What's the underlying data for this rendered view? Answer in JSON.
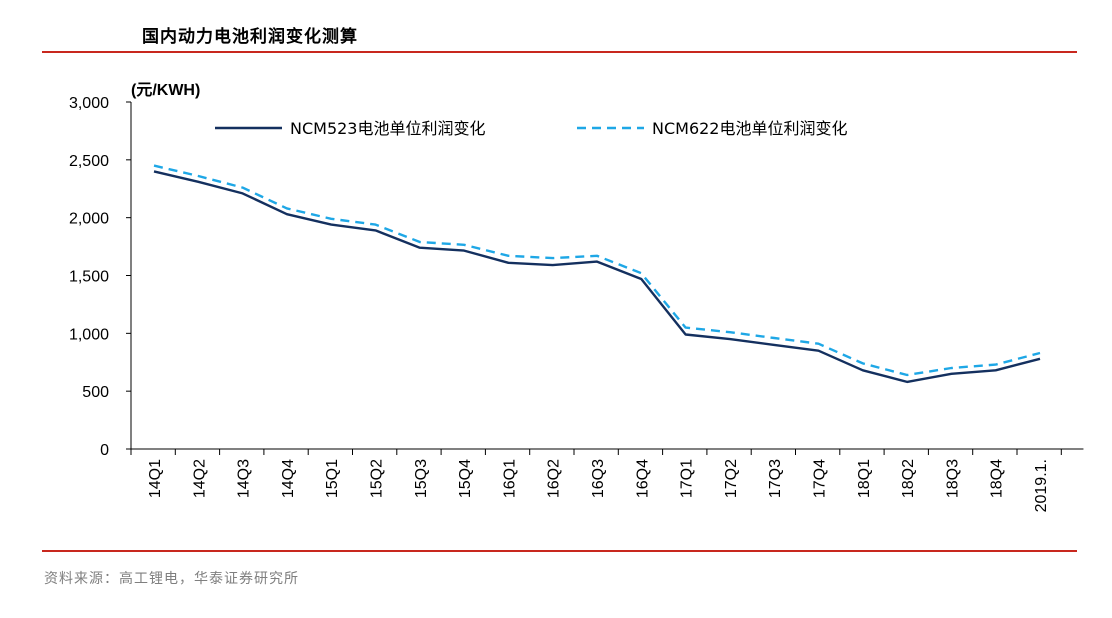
{
  "header": {
    "title": "国内动力电池利润变化测算"
  },
  "footer": {
    "source": "资料来源：高工锂电，华泰证券研究所"
  },
  "colors": {
    "series1": "#14305f",
    "series2": "#1ea7e6",
    "rule": "#c8281e",
    "axis": "#000000"
  },
  "chart_data": {
    "type": "line",
    "title": "国内动力电池利润变化测算",
    "unit_label": "(元/KWH)",
    "xlabel": "",
    "ylabel": "",
    "ylim": [
      0,
      3000
    ],
    "yticks": [
      0,
      500,
      1000,
      1500,
      2000,
      2500,
      3000
    ],
    "ytick_labels": [
      "0",
      "500",
      "1,000",
      "1,500",
      "2,000",
      "2,500",
      "3,000"
    ],
    "grid": false,
    "legend_position": "top",
    "categories": [
      "14Q1",
      "14Q2",
      "14Q3",
      "14Q4",
      "15Q1",
      "15Q2",
      "15Q3",
      "15Q4",
      "16Q1",
      "16Q2",
      "16Q3",
      "16Q4",
      "17Q1",
      "17Q2",
      "17Q3",
      "17Q4",
      "18Q1",
      "18Q2",
      "18Q3",
      "18Q4",
      "2019.1."
    ],
    "series": [
      {
        "name": "NCM523电池单位利润变化",
        "style": "solid",
        "values": [
          2400,
          2310,
          2210,
          2030,
          1940,
          1890,
          1740,
          1715,
          1610,
          1590,
          1620,
          1470,
          990,
          950,
          900,
          850,
          680,
          580,
          650,
          680,
          780
        ]
      },
      {
        "name": "NCM622电池单位利润变化",
        "style": "dashed",
        "values": [
          2450,
          2360,
          2260,
          2080,
          1990,
          1940,
          1790,
          1765,
          1670,
          1650,
          1670,
          1520,
          1050,
          1010,
          960,
          910,
          740,
          640,
          700,
          730,
          830
        ]
      }
    ]
  }
}
